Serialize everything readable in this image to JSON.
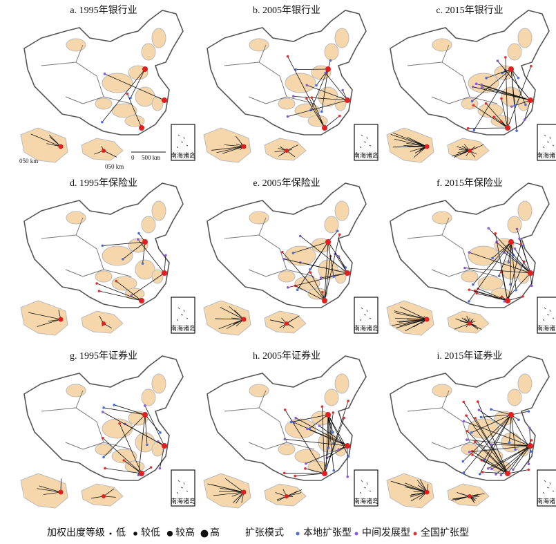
{
  "panels": [
    {
      "title": "a. 1995年银行业",
      "inset_label": "南海诸岛"
    },
    {
      "title": "b. 2005年银行业",
      "inset_label": "南海诸岛"
    },
    {
      "title": "c. 2015年银行业",
      "inset_label": "南海诸岛"
    },
    {
      "title": "d. 1995年保险业",
      "inset_label": "南海诸岛"
    },
    {
      "title": "e. 2005年保险业",
      "inset_label": "南海诸岛"
    },
    {
      "title": "f. 2015年保险业",
      "inset_label": "南海诸岛"
    },
    {
      "title": "g. 1995年证券业",
      "inset_label": "南海诸岛"
    },
    {
      "title": "h. 2005年证券业",
      "inset_label": "南海诸岛"
    },
    {
      "title": "i. 2015年证券业",
      "inset_label": "南海诸岛"
    }
  ],
  "scale": {
    "main_zero": "0",
    "main_length": "500 km",
    "inset_1": "050 km",
    "inset_2": "050 km"
  },
  "legend": {
    "level_title": "加权出度等级",
    "levels": [
      "低",
      "较低",
      "较高",
      "高"
    ],
    "mode_title": "扩张模式",
    "modes": [
      "本地扩张型",
      "中间发展型",
      "全国扩张型"
    ]
  }
}
